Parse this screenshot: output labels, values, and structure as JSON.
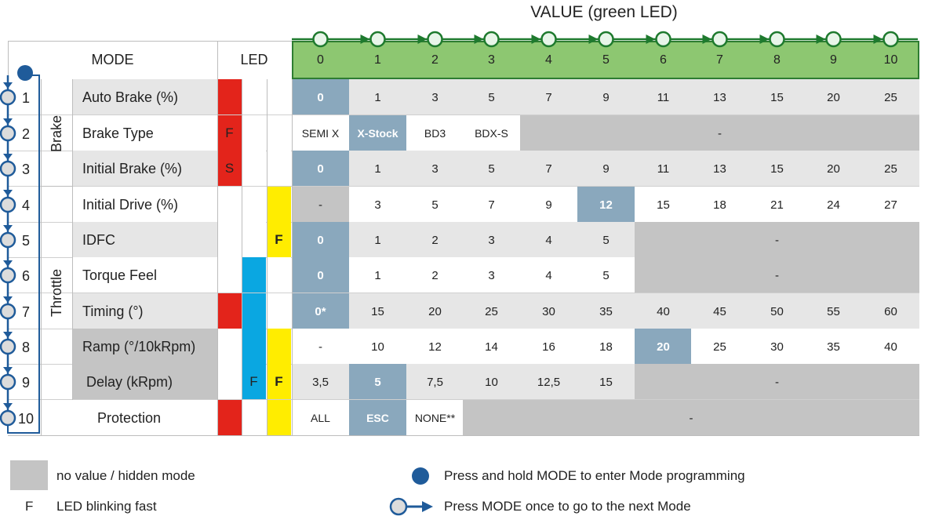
{
  "header": {
    "value_title": "VALUE (green LED)",
    "mode_label": "MODE",
    "led_label": "LED",
    "value_indices": [
      "0",
      "1",
      "2",
      "3",
      "4",
      "5",
      "6",
      "7",
      "8",
      "9",
      "10"
    ]
  },
  "groups": {
    "brake": "Brake",
    "throttle": "Throttle"
  },
  "colors": {
    "green": "#8dc771",
    "red": "#e3241b",
    "blue": "#0aa7e1",
    "yellow": "#ffed00",
    "highlight": "#8aa8bd",
    "gray": "#c4c4c4",
    "light": "#e6e6e6",
    "nav": "#1f5b9a"
  },
  "rows": [
    {
      "num": "1",
      "name": "Auto Brake (%)",
      "led": {
        "red": "",
        "blue": null,
        "yellow": null
      },
      "values": [
        "0",
        "1",
        "3",
        "5",
        "7",
        "9",
        "11",
        "13",
        "15",
        "20",
        "25"
      ],
      "highlight": 0,
      "hidden_from": null
    },
    {
      "num": "2",
      "name": "Brake Type",
      "led": {
        "red": "F",
        "blue": null,
        "yellow": null
      },
      "values": [
        "SEMI X",
        "X-Stock",
        "BD3",
        "BDX-S"
      ],
      "highlight": 1,
      "hidden_from": 4,
      "hidden_text": "-"
    },
    {
      "num": "3",
      "name": "Initial Brake (%)",
      "led": {
        "red": "S",
        "blue": null,
        "yellow": null
      },
      "values": [
        "0",
        "1",
        "3",
        "5",
        "7",
        "9",
        "11",
        "13",
        "15",
        "20",
        "25"
      ],
      "highlight": 0,
      "hidden_from": null
    },
    {
      "num": "4",
      "name": "Initial Drive (%)",
      "led": {
        "red": null,
        "blue": null,
        "yellow": ""
      },
      "values": [
        "-",
        "3",
        "5",
        "7",
        "9",
        "12",
        "15",
        "18",
        "21",
        "24",
        "27"
      ],
      "highlight": 5,
      "gray_cells": [
        0
      ],
      "hidden_from": null
    },
    {
      "num": "5",
      "name": "IDFC",
      "led": {
        "red": null,
        "blue": null,
        "yellow": "F"
      },
      "values": [
        "0",
        "1",
        "2",
        "3",
        "4",
        "5"
      ],
      "highlight": 0,
      "hidden_from": 6,
      "hidden_text": "-"
    },
    {
      "num": "6",
      "name": "Torque Feel",
      "led": {
        "red": null,
        "blue": "",
        "yellow": null
      },
      "values": [
        "0",
        "1",
        "2",
        "3",
        "4",
        "5"
      ],
      "highlight": 0,
      "hidden_from": 6,
      "hidden_text": "-"
    },
    {
      "num": "7",
      "name": "Timing (°)",
      "led": {
        "red": "",
        "blue": "",
        "yellow": null
      },
      "values": [
        "0*",
        "15",
        "20",
        "25",
        "30",
        "35",
        "40",
        "45",
        "50",
        "55",
        "60"
      ],
      "highlight": 0,
      "hidden_from": null
    },
    {
      "num": "8",
      "name": "Ramp (°/10kRpm)",
      "led": {
        "red": null,
        "blue": "",
        "yellow": ""
      },
      "values": [
        "-",
        "10",
        "12",
        "14",
        "16",
        "18",
        "20",
        "25",
        "30",
        "35",
        "40"
      ],
      "highlight": 6,
      "hidden_from": null,
      "name_gray": true
    },
    {
      "num": "9",
      "name": "Delay (kRpm)",
      "led": {
        "red": null,
        "blue": "F",
        "yellow": "F"
      },
      "values": [
        "3,5",
        "5",
        "7,5",
        "10",
        "12,5",
        "15"
      ],
      "highlight": 1,
      "hidden_from": 6,
      "hidden_text": "-",
      "name_gray": true
    },
    {
      "num": "10",
      "name": "Protection",
      "led": {
        "red": "",
        "blue": null,
        "yellow": ""
      },
      "values": [
        "ALL",
        "ESC",
        "NONE**"
      ],
      "highlight": 1,
      "hidden_from": 3,
      "hidden_text": "-"
    }
  ],
  "legend": {
    "hidden": "no value / hidden mode",
    "fast_letter": "F",
    "fast": "LED blinking fast",
    "hold": "Press and hold MODE to enter Mode programming",
    "once": "Press MODE once to go to the next Mode"
  }
}
